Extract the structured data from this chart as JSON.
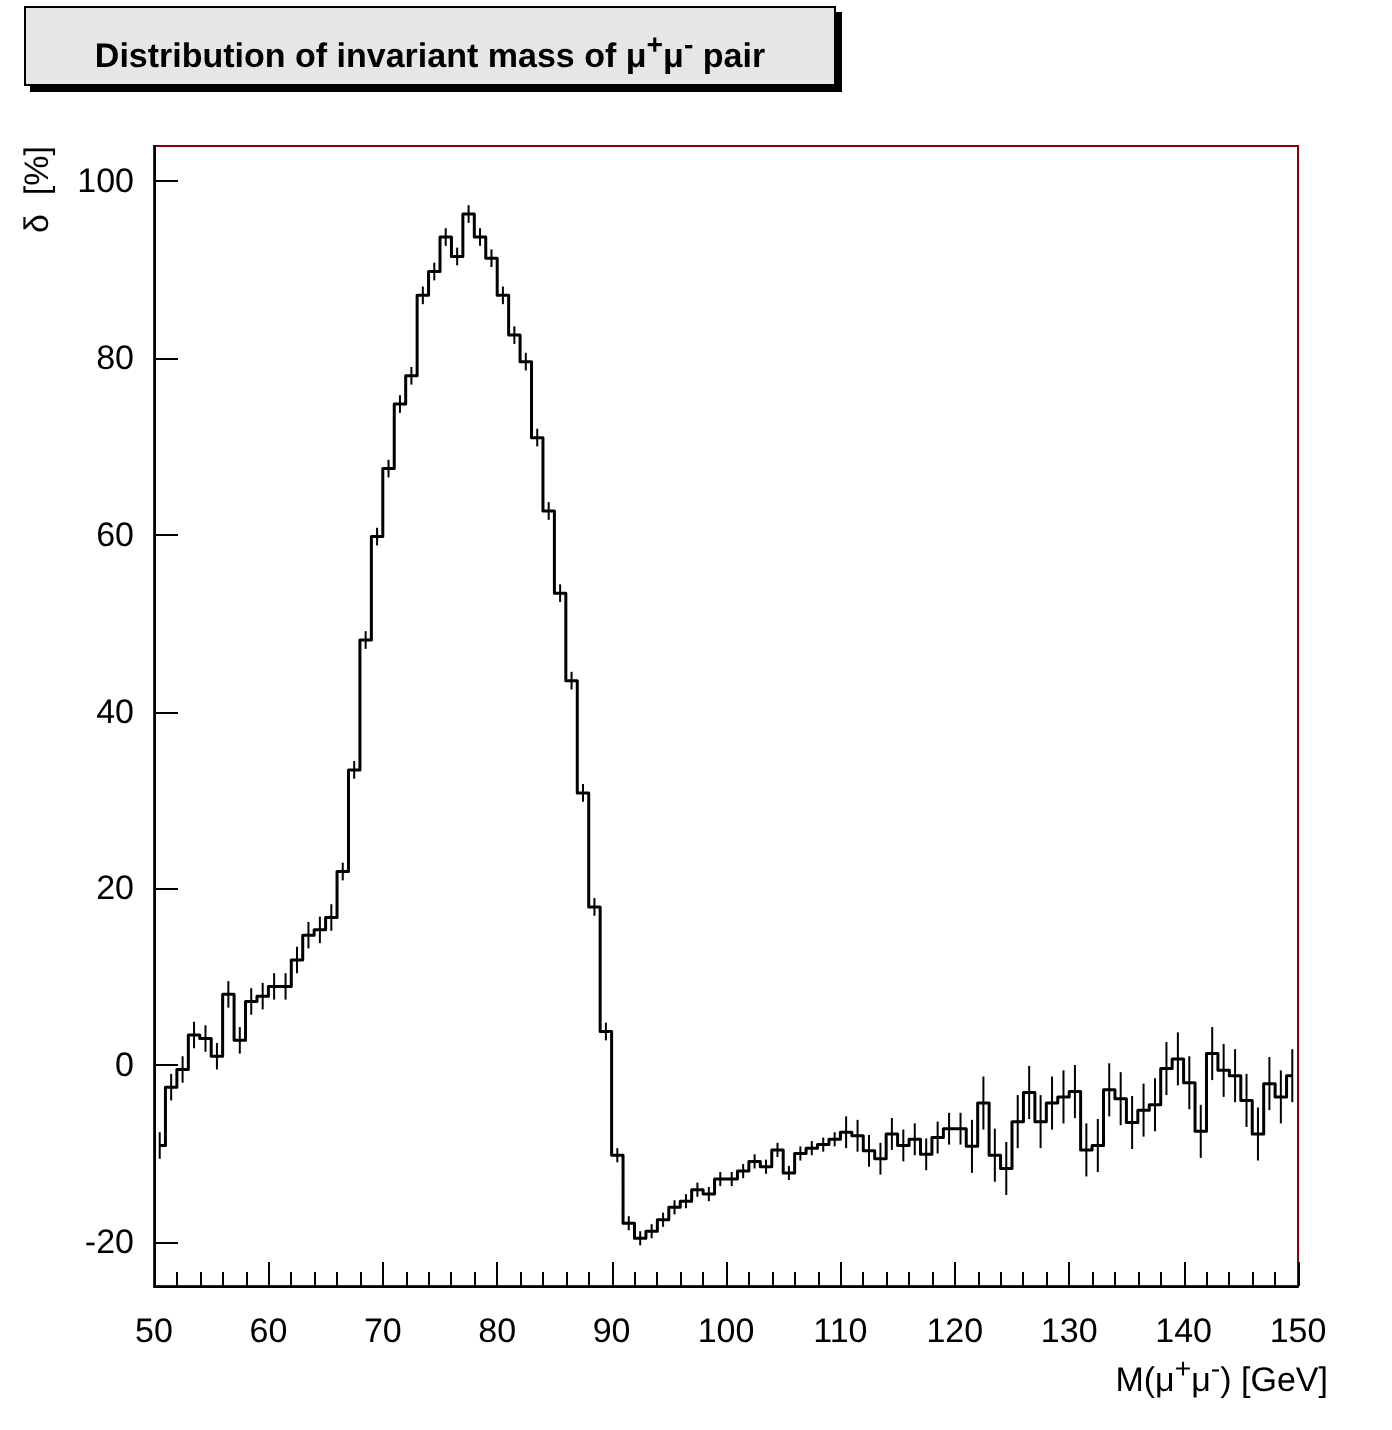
{
  "chart_data": {
    "type": "step",
    "title": "Distribution of invariant mass of μ$^{+}$μ$^{-}$ pair",
    "xlabel": "M(μ$^{+}$μ$^{-}$) [GeV]",
    "ylabel": "δ  [%]",
    "color": "#000000",
    "x": [
      50.5,
      51.5,
      52.5,
      53.5,
      54.5,
      55.5,
      56.5,
      57.5,
      58.5,
      59.5,
      60.5,
      61.5,
      62.5,
      63.5,
      64.5,
      65.5,
      66.5,
      67.5,
      68.5,
      69.5,
      70.5,
      71.5,
      72.5,
      73.5,
      74.5,
      75.5,
      76.5,
      77.5,
      78.5,
      79.5,
      80.5,
      81.5,
      82.5,
      83.5,
      84.5,
      85.5,
      86.5,
      87.5,
      88.5,
      89.5,
      90.5,
      91.5,
      92.5,
      93.5,
      94.5,
      95.5,
      96.5,
      97.5,
      98.5,
      99.5,
      100.5,
      101.5,
      102.5,
      103.5,
      104.5,
      105.5,
      106.5,
      107.5,
      108.5,
      109.5,
      110.5,
      111.5,
      112.5,
      113.5,
      114.5,
      115.5,
      116.5,
      117.5,
      118.5,
      119.5,
      120.5,
      121.5,
      122.5,
      123.5,
      124.5,
      125.5,
      126.5,
      127.5,
      128.5,
      129.5,
      130.5,
      131.5,
      132.5,
      133.5,
      134.5,
      135.5,
      136.5,
      137.5,
      138.5,
      139.5,
      140.5,
      141.5,
      142.5,
      143.5,
      144.5,
      145.5,
      146.5,
      147.5,
      148.5,
      149.5
    ],
    "values": [
      -9.1,
      -2.5,
      -0.5,
      3.4,
      3.0,
      1.0,
      8.0,
      2.8,
      7.2,
      7.8,
      8.9,
      8.9,
      11.9,
      14.7,
      15.3,
      16.7,
      21.9,
      33.4,
      48.1,
      59.8,
      67.5,
      74.8,
      78.0,
      87.1,
      89.8,
      93.7,
      91.5,
      96.3,
      93.7,
      91.3,
      87.1,
      82.6,
      79.6,
      71.0,
      62.7,
      53.4,
      43.5,
      30.8,
      17.9,
      3.8,
      -10.2,
      -17.9,
      -19.6,
      -18.8,
      -17.5,
      -16.1,
      -15.4,
      -14.1,
      -14.6,
      -12.9,
      -12.9,
      -12.0,
      -10.9,
      -11.5,
      -9.6,
      -12.2,
      -10.0,
      -9.4,
      -9.0,
      -8.4,
      -7.6,
      -8.0,
      -9.7,
      -10.6,
      -7.8,
      -9.1,
      -8.4,
      -10.1,
      -8.2,
      -7.2,
      -7.2,
      -9.2,
      -4.3,
      -10.2,
      -11.7,
      -6.4,
      -3.1,
      -6.4,
      -4.3,
      -3.6,
      -3.0,
      -9.6,
      -9.1,
      -2.8,
      -3.8,
      -6.5,
      -5.1,
      -4.5,
      -0.4,
      0.7,
      -2.0,
      -7.5,
      1.3,
      -0.6,
      -1.2,
      -4.0,
      -7.8,
      -2.1,
      -3.6,
      -1.2
    ],
    "errors": [
      1.5,
      1.5,
      1.5,
      1.5,
      1.5,
      1.5,
      1.5,
      1.5,
      1.5,
      1.5,
      1.5,
      1.5,
      1.5,
      1.5,
      1.5,
      1.5,
      1,
      1,
      1,
      1,
      1,
      1,
      1,
      1,
      1,
      1,
      1,
      1,
      1,
      1,
      1,
      1,
      1,
      1,
      1,
      1,
      1,
      1,
      1,
      1,
      0.8,
      0.8,
      0.8,
      0.8,
      0.8,
      0.8,
      0.8,
      0.8,
      0.8,
      0.8,
      0.8,
      0.8,
      0.8,
      0.8,
      0.8,
      0.8,
      0.8,
      0.8,
      0.8,
      0.8,
      1.8,
      1.8,
      1.8,
      1.8,
      1.8,
      1.8,
      1.8,
      1.8,
      1.8,
      1.8,
      1.8,
      3,
      3,
      3,
      3,
      3,
      3,
      3,
      3,
      3,
      3,
      3,
      3,
      3,
      3,
      3,
      3,
      3,
      3,
      3,
      3,
      3,
      3,
      3,
      3,
      3,
      3,
      3,
      3,
      3
    ],
    "xlim": [
      50,
      150
    ],
    "xticks": [
      50,
      60,
      70,
      80,
      90,
      100,
      110,
      120,
      130,
      140,
      150
    ],
    "ylim": [
      -25,
      104
    ],
    "yticks": [
      -20,
      0,
      20,
      40,
      60,
      80,
      100
    ],
    "grid": false,
    "marker": "none",
    "line_style": "solid"
  }
}
